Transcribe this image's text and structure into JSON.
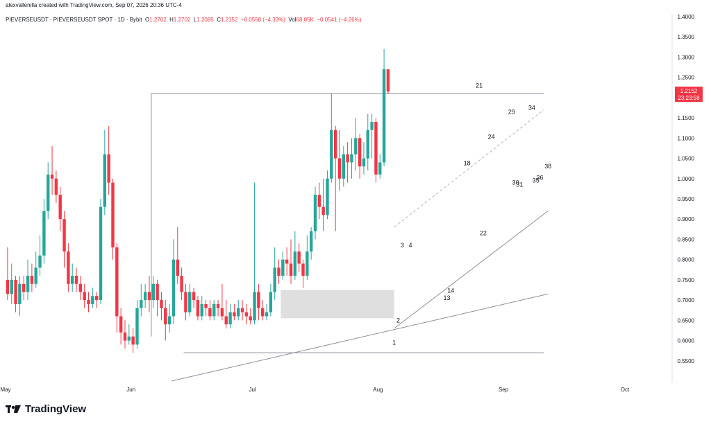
{
  "creator_line": "alexvallenilla created with TradingView.com, Sep 07, 2026 20:36 UTC-4",
  "header": {
    "symbol": "PIEVERSEUSDT · PIEVERSEUSDT SPOT · 1D · Bybit",
    "o_label": "O",
    "o_value": "1.2702",
    "h_label": "H",
    "h_value": "1.2702",
    "l_label": "L",
    "l_value": "1.2085",
    "c_label": "C",
    "c_value": "1.2152",
    "change": "−0.0550 (−4.33%)",
    "vol_label": "Vol",
    "vol_value": "68.05K",
    "vol_change": "−0.0541 (−4.26%)"
  },
  "price_tag": {
    "price": "1.2152",
    "countdown": "23:23:58",
    "color": "#f23645"
  },
  "brand": {
    "name": "TradingView",
    "logo_icon": "tradingview-logo-icon"
  },
  "colors": {
    "up": "#26a69a",
    "down": "#f23645",
    "line": "#8a8e99",
    "dashed": "#b2b5be",
    "box": "#d9d9d9"
  },
  "chart_data": {
    "type": "candlestick",
    "ylim": [
      0.5,
      1.4
    ],
    "y_ticks": [
      "1.4000",
      "1.3500",
      "1.3000",
      "1.2500",
      "1.2000",
      "1.1500",
      "1.1000",
      "1.0500",
      "1.0000",
      "0.9500",
      "0.9000",
      "0.8500",
      "0.8000",
      "0.7500",
      "0.7000",
      "0.6500",
      "0.6000",
      "0.5500"
    ],
    "x_ticks": [
      {
        "label": "May",
        "day": 0
      },
      {
        "label": "Jun",
        "day": 31
      },
      {
        "label": "Jul",
        "day": 61
      },
      {
        "label": "Aug",
        "day": 92
      },
      {
        "label": "Sep",
        "day": 123
      },
      {
        "label": "Oct",
        "day": 153
      }
    ],
    "candles": [
      [
        0.75,
        0.715,
        0.83,
        0.7
      ],
      [
        0.715,
        0.75,
        0.79,
        0.69
      ],
      [
        0.75,
        0.69,
        0.76,
        0.67
      ],
      [
        0.69,
        0.74,
        0.76,
        0.66
      ],
      [
        0.74,
        0.72,
        0.76,
        0.7
      ],
      [
        0.72,
        0.76,
        0.8,
        0.7
      ],
      [
        0.76,
        0.74,
        0.79,
        0.72
      ],
      [
        0.74,
        0.78,
        0.82,
        0.73
      ],
      [
        0.78,
        0.81,
        0.86,
        0.76
      ],
      [
        0.81,
        0.92,
        0.95,
        0.79
      ],
      [
        0.92,
        1.01,
        1.04,
        0.9
      ],
      [
        1.01,
        1.0,
        1.08,
        0.96
      ],
      [
        1.0,
        0.96,
        1.02,
        0.94
      ],
      [
        0.96,
        0.9,
        0.98,
        0.87
      ],
      [
        0.9,
        0.82,
        0.92,
        0.78
      ],
      [
        0.82,
        0.74,
        0.84,
        0.72
      ],
      [
        0.74,
        0.76,
        0.79,
        0.72
      ],
      [
        0.76,
        0.74,
        0.78,
        0.72
      ],
      [
        0.74,
        0.72,
        0.76,
        0.7
      ],
      [
        0.72,
        0.7,
        0.74,
        0.68
      ],
      [
        0.7,
        0.69,
        0.72,
        0.67
      ],
      [
        0.69,
        0.71,
        0.73,
        0.68
      ],
      [
        0.71,
        0.7,
        0.72,
        0.68
      ],
      [
        0.7,
        0.93,
        0.95,
        0.69
      ],
      [
        0.93,
        1.06,
        1.12,
        0.91
      ],
      [
        1.06,
        0.99,
        1.13,
        0.96
      ],
      [
        0.99,
        0.83,
        1.0,
        0.8
      ],
      [
        0.83,
        0.66,
        0.84,
        0.62
      ],
      [
        0.66,
        0.62,
        0.68,
        0.59
      ],
      [
        0.62,
        0.6,
        0.65,
        0.58
      ],
      [
        0.6,
        0.61,
        0.64,
        0.59
      ],
      [
        0.61,
        0.59,
        0.63,
        0.57
      ],
      [
        0.59,
        0.68,
        0.7,
        0.58
      ],
      [
        0.68,
        0.7,
        0.74,
        0.66
      ],
      [
        0.7,
        0.72,
        0.74,
        0.68
      ],
      [
        0.72,
        0.7,
        0.76,
        0.67
      ],
      [
        0.7,
        0.74,
        0.76,
        0.68
      ],
      [
        0.74,
        0.7,
        0.75,
        0.66
      ],
      [
        0.7,
        0.68,
        0.72,
        0.65
      ],
      [
        0.68,
        0.64,
        0.7,
        0.6
      ],
      [
        0.64,
        0.66,
        0.69,
        0.62
      ],
      [
        0.66,
        0.8,
        0.85,
        0.64
      ],
      [
        0.8,
        0.76,
        0.88,
        0.74
      ],
      [
        0.76,
        0.72,
        0.78,
        0.7
      ],
      [
        0.72,
        0.67,
        0.74,
        0.65
      ],
      [
        0.67,
        0.72,
        0.74,
        0.66
      ],
      [
        0.72,
        0.7,
        0.73,
        0.68
      ],
      [
        0.7,
        0.66,
        0.71,
        0.65
      ],
      [
        0.66,
        0.69,
        0.71,
        0.65
      ],
      [
        0.69,
        0.68,
        0.7,
        0.66
      ],
      [
        0.68,
        0.66,
        0.7,
        0.65
      ],
      [
        0.66,
        0.69,
        0.7,
        0.65
      ],
      [
        0.69,
        0.68,
        0.7,
        0.66
      ],
      [
        0.68,
        0.66,
        0.74,
        0.65
      ],
      [
        0.66,
        0.64,
        0.7,
        0.63
      ],
      [
        0.64,
        0.67,
        0.69,
        0.63
      ],
      [
        0.67,
        0.66,
        0.69,
        0.65
      ],
      [
        0.66,
        0.68,
        0.7,
        0.65
      ],
      [
        0.68,
        0.67,
        0.7,
        0.65
      ],
      [
        0.67,
        0.66,
        0.69,
        0.64
      ],
      [
        0.66,
        0.65,
        0.68,
        0.64
      ],
      [
        0.65,
        0.72,
        0.99,
        0.64
      ],
      [
        0.72,
        0.68,
        0.74,
        0.65
      ],
      [
        0.68,
        0.66,
        0.7,
        0.65
      ],
      [
        0.66,
        0.67,
        0.69,
        0.65
      ],
      [
        0.67,
        0.72,
        0.74,
        0.66
      ],
      [
        0.72,
        0.78,
        0.83,
        0.7
      ],
      [
        0.78,
        0.76,
        0.8,
        0.74
      ],
      [
        0.76,
        0.8,
        0.82,
        0.75
      ],
      [
        0.8,
        0.79,
        0.83,
        0.76
      ],
      [
        0.79,
        0.76,
        0.85,
        0.74
      ],
      [
        0.76,
        0.82,
        0.87,
        0.75
      ],
      [
        0.82,
        0.79,
        0.84,
        0.77
      ],
      [
        0.79,
        0.76,
        0.8,
        0.73
      ],
      [
        0.76,
        0.82,
        0.86,
        0.75
      ],
      [
        0.82,
        0.87,
        0.88,
        0.8
      ],
      [
        0.87,
        0.96,
        0.98,
        0.85
      ],
      [
        0.96,
        0.93,
        0.99,
        0.9
      ],
      [
        0.93,
        0.91,
        1.0,
        0.87
      ],
      [
        0.91,
        1.0,
        1.02,
        0.9
      ],
      [
        1.0,
        1.12,
        1.21,
        0.99
      ],
      [
        1.12,
        1.05,
        1.13,
        0.87
      ],
      [
        1.05,
        1.0,
        1.12,
        0.97
      ],
      [
        1.0,
        1.06,
        1.08,
        0.98
      ],
      [
        1.06,
        1.04,
        1.09,
        0.99
      ],
      [
        1.04,
        1.06,
        1.1,
        1.0
      ],
      [
        1.06,
        1.1,
        1.15,
        1.02
      ],
      [
        1.1,
        1.03,
        1.11,
        1.0
      ],
      [
        1.03,
        1.05,
        1.09,
        1.01
      ],
      [
        1.05,
        1.12,
        1.16,
        1.02
      ],
      [
        1.12,
        1.14,
        1.16,
        1.05
      ],
      [
        1.14,
        1.01,
        1.15,
        0.99
      ],
      [
        1.01,
        1.04,
        1.06,
        1.0
      ],
      [
        1.04,
        1.27,
        1.32,
        1.03
      ],
      [
        1.27,
        1.215,
        1.27,
        1.209
      ]
    ],
    "gray_box": {
      "day_start": 68,
      "day_end": 96,
      "y_low": 0.655,
      "y_high": 0.725
    },
    "lines": [
      {
        "name": "resistance-line",
        "from": {
          "day": 36,
          "y": 1.21
        },
        "to": {
          "day": 133,
          "y": 1.21
        },
        "dashed": false
      },
      {
        "name": "resistance-left-vertical",
        "from": {
          "day": 36,
          "y": 1.21
        },
        "to": {
          "day": 36,
          "y": 0.61
        },
        "dashed": false
      },
      {
        "name": "support-line",
        "from": {
          "day": 44,
          "y": 0.57
        },
        "to": {
          "day": 133,
          "y": 0.57
        },
        "dashed": false
      },
      {
        "name": "long-trendline",
        "from": {
          "day": 41,
          "y": 0.5
        },
        "to": {
          "day": 134,
          "y": 0.715
        },
        "dashed": false
      },
      {
        "name": "steep-trendline",
        "from": {
          "day": 96,
          "y": 0.63
        },
        "to": {
          "day": 134,
          "y": 0.92
        },
        "dashed": false
      },
      {
        "name": "channel-dashed-line",
        "from": {
          "day": 96,
          "y": 0.88
        },
        "to": {
          "day": 133,
          "y": 1.17
        },
        "dashed": true
      }
    ],
    "annotations": [
      {
        "text": "1",
        "day": 96,
        "y": 0.59
      },
      {
        "text": "2",
        "day": 97,
        "y": 0.645
      },
      {
        "text": "3",
        "day": 98,
        "y": 0.83
      },
      {
        "text": "4",
        "day": 100,
        "y": 0.83
      },
      {
        "text": "13",
        "day": 109,
        "y": 0.7
      },
      {
        "text": "14",
        "day": 110,
        "y": 0.718
      },
      {
        "text": "18",
        "day": 114,
        "y": 1.033
      },
      {
        "text": "21",
        "day": 117,
        "y": 1.225
      },
      {
        "text": "22",
        "day": 118,
        "y": 0.86
      },
      {
        "text": "24",
        "day": 120,
        "y": 1.098
      },
      {
        "text": "29",
        "day": 125,
        "y": 1.16
      },
      {
        "text": "30",
        "day": 126,
        "y": 0.985
      },
      {
        "text": "31",
        "day": 127,
        "y": 0.98
      },
      {
        "text": "34",
        "day": 130,
        "y": 1.17
      },
      {
        "text": "35",
        "day": 131,
        "y": 0.99
      },
      {
        "text": "36",
        "day": 132,
        "y": 0.997
      },
      {
        "text": "38",
        "day": 134,
        "y": 1.025
      }
    ]
  }
}
